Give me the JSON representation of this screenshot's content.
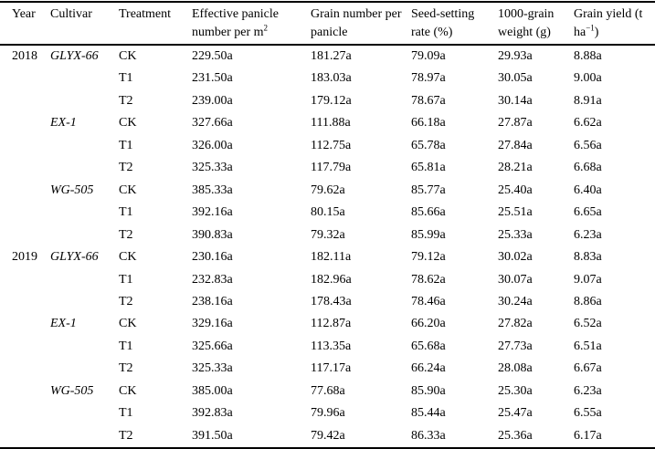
{
  "table": {
    "header": {
      "year": "Year",
      "cultivar": "Cultivar",
      "treatment": "Treatment",
      "panicle_main": "Effective panicle number per m",
      "panicle_sup": "2",
      "grain_number": "Grain number per panicle",
      "seed_setting": "Seed-setting rate (%)",
      "grain_weight": "1000-grain weight (g)",
      "yield_main": "Grain yield (t ha",
      "yield_sup": "−1",
      "yield_close": ")"
    },
    "rows": [
      {
        "year": "2018",
        "cultivar": "GLYX-66",
        "treatment": "CK",
        "panicle": "229.50a",
        "grain_number": "181.27a",
        "seed_setting": "79.09a",
        "grain_weight": "29.93a",
        "grain_yield": "8.88a"
      },
      {
        "year": "",
        "cultivar": "",
        "treatment": "T1",
        "panicle": "231.50a",
        "grain_number": "183.03a",
        "seed_setting": "78.97a",
        "grain_weight": "30.05a",
        "grain_yield": "9.00a"
      },
      {
        "year": "",
        "cultivar": "",
        "treatment": "T2",
        "panicle": "239.00a",
        "grain_number": "179.12a",
        "seed_setting": "78.67a",
        "grain_weight": "30.14a",
        "grain_yield": "8.91a"
      },
      {
        "year": "",
        "cultivar": "EX-1",
        "treatment": "CK",
        "panicle": "327.66a",
        "grain_number": "111.88a",
        "seed_setting": "66.18a",
        "grain_weight": "27.87a",
        "grain_yield": "6.62a"
      },
      {
        "year": "",
        "cultivar": "",
        "treatment": "T1",
        "panicle": "326.00a",
        "grain_number": "112.75a",
        "seed_setting": "65.78a",
        "grain_weight": "27.84a",
        "grain_yield": "6.56a"
      },
      {
        "year": "",
        "cultivar": "",
        "treatment": "T2",
        "panicle": "325.33a",
        "grain_number": "117.79a",
        "seed_setting": "65.81a",
        "grain_weight": "28.21a",
        "grain_yield": "6.68a"
      },
      {
        "year": "",
        "cultivar": "WG-505",
        "treatment": "CK",
        "panicle": "385.33a",
        "grain_number": "79.62a",
        "seed_setting": "85.77a",
        "grain_weight": "25.40a",
        "grain_yield": "6.40a"
      },
      {
        "year": "",
        "cultivar": "",
        "treatment": "T1",
        "panicle": "392.16a",
        "grain_number": "80.15a",
        "seed_setting": "85.66a",
        "grain_weight": "25.51a",
        "grain_yield": "6.65a"
      },
      {
        "year": "",
        "cultivar": "",
        "treatment": "T2",
        "panicle": "390.83a",
        "grain_number": "79.32a",
        "seed_setting": "85.99a",
        "grain_weight": "25.33a",
        "grain_yield": "6.23a"
      },
      {
        "year": "2019",
        "cultivar": "GLYX-66",
        "treatment": "CK",
        "panicle": "230.16a",
        "grain_number": "182.11a",
        "seed_setting": "79.12a",
        "grain_weight": "30.02a",
        "grain_yield": "8.83a"
      },
      {
        "year": "",
        "cultivar": "",
        "treatment": "T1",
        "panicle": "232.83a",
        "grain_number": "182.96a",
        "seed_setting": "78.62a",
        "grain_weight": "30.07a",
        "grain_yield": "9.07a"
      },
      {
        "year": "",
        "cultivar": "",
        "treatment": "T2",
        "panicle": "238.16a",
        "grain_number": "178.43a",
        "seed_setting": "78.46a",
        "grain_weight": "30.24a",
        "grain_yield": "8.86a"
      },
      {
        "year": "",
        "cultivar": "EX-1",
        "treatment": "CK",
        "panicle": "329.16a",
        "grain_number": "112.87a",
        "seed_setting": "66.20a",
        "grain_weight": "27.82a",
        "grain_yield": "6.52a"
      },
      {
        "year": "",
        "cultivar": "",
        "treatment": "T1",
        "panicle": "325.66a",
        "grain_number": "113.35a",
        "seed_setting": "65.68a",
        "grain_weight": "27.73a",
        "grain_yield": "6.51a"
      },
      {
        "year": "",
        "cultivar": "",
        "treatment": "T2",
        "panicle": "325.33a",
        "grain_number": "117.17a",
        "seed_setting": "66.24a",
        "grain_weight": "28.08a",
        "grain_yield": "6.67a"
      },
      {
        "year": "",
        "cultivar": "WG-505",
        "treatment": "CK",
        "panicle": "385.00a",
        "grain_number": "77.68a",
        "seed_setting": "85.90a",
        "grain_weight": "25.30a",
        "grain_yield": "6.23a"
      },
      {
        "year": "",
        "cultivar": "",
        "treatment": "T1",
        "panicle": "392.83a",
        "grain_number": "79.96a",
        "seed_setting": "85.44a",
        "grain_weight": "25.47a",
        "grain_yield": "6.55a"
      },
      {
        "year": "",
        "cultivar": "",
        "treatment": "T2",
        "panicle": "391.50a",
        "grain_number": "79.42a",
        "seed_setting": "86.33a",
        "grain_weight": "25.36a",
        "grain_yield": "6.17a"
      }
    ]
  }
}
